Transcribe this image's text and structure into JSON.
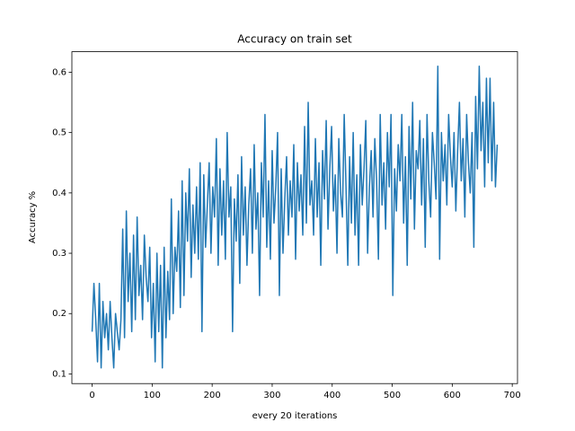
{
  "chart_data": {
    "type": "line",
    "title": "Accuracy on train set",
    "x_label": "every 20 iterations",
    "y_label": "Accuracy %",
    "color": "#1f77b4",
    "x": [
      0,
      3,
      6,
      9,
      12,
      15,
      18,
      21,
      24,
      27,
      30,
      33,
      36,
      39,
      42,
      45,
      48,
      51,
      54,
      57,
      60,
      63,
      66,
      69,
      72,
      75,
      78,
      81,
      84,
      87,
      90,
      93,
      96,
      99,
      102,
      105,
      108,
      111,
      114,
      117,
      120,
      123,
      126,
      129,
      132,
      135,
      138,
      141,
      144,
      147,
      150,
      153,
      156,
      159,
      162,
      165,
      168,
      171,
      174,
      177,
      180,
      183,
      186,
      189,
      192,
      195,
      198,
      201,
      204,
      207,
      210,
      213,
      216,
      219,
      222,
      225,
      228,
      231,
      234,
      237,
      240,
      243,
      246,
      249,
      252,
      255,
      258,
      261,
      264,
      267,
      270,
      273,
      276,
      279,
      282,
      285,
      288,
      291,
      294,
      297,
      300,
      303,
      306,
      309,
      312,
      315,
      318,
      321,
      324,
      327,
      330,
      333,
      336,
      339,
      342,
      345,
      348,
      351,
      354,
      357,
      360,
      363,
      366,
      369,
      372,
      375,
      378,
      381,
      384,
      387,
      390,
      393,
      396,
      399,
      402,
      405,
      408,
      411,
      414,
      417,
      420,
      423,
      426,
      429,
      432,
      435,
      438,
      441,
      444,
      447,
      450,
      453,
      456,
      459,
      462,
      465,
      468,
      471,
      474,
      477,
      480,
      483,
      486,
      489,
      492,
      495,
      498,
      501,
      504,
      507,
      510,
      513,
      516,
      519,
      522,
      525,
      528,
      531,
      534,
      537,
      540,
      543,
      546,
      549,
      552,
      555,
      558,
      561,
      564,
      567,
      570,
      573,
      576,
      579,
      582,
      585,
      588,
      591,
      594,
      597,
      600,
      603,
      606,
      609,
      612,
      615,
      618,
      621,
      624,
      627,
      630,
      633,
      636,
      639,
      642,
      645,
      648,
      651,
      654,
      657,
      660,
      663,
      666,
      669,
      672,
      675
    ],
    "values": [
      0.17,
      0.25,
      0.19,
      0.12,
      0.25,
      0.11,
      0.22,
      0.16,
      0.2,
      0.14,
      0.22,
      0.16,
      0.11,
      0.2,
      0.17,
      0.14,
      0.19,
      0.34,
      0.16,
      0.37,
      0.22,
      0.3,
      0.17,
      0.33,
      0.19,
      0.36,
      0.23,
      0.28,
      0.19,
      0.33,
      0.26,
      0.22,
      0.31,
      0.16,
      0.25,
      0.12,
      0.3,
      0.17,
      0.28,
      0.11,
      0.31,
      0.16,
      0.27,
      0.19,
      0.39,
      0.2,
      0.31,
      0.27,
      0.37,
      0.21,
      0.42,
      0.23,
      0.4,
      0.32,
      0.44,
      0.26,
      0.38,
      0.3,
      0.41,
      0.29,
      0.45,
      0.17,
      0.43,
      0.31,
      0.38,
      0.45,
      0.3,
      0.41,
      0.36,
      0.49,
      0.28,
      0.44,
      0.33,
      0.42,
      0.29,
      0.5,
      0.36,
      0.41,
      0.17,
      0.39,
      0.32,
      0.43,
      0.25,
      0.46,
      0.33,
      0.41,
      0.28,
      0.38,
      0.44,
      0.3,
      0.48,
      0.34,
      0.4,
      0.23,
      0.45,
      0.36,
      0.53,
      0.31,
      0.42,
      0.29,
      0.47,
      0.35,
      0.41,
      0.5,
      0.23,
      0.44,
      0.3,
      0.39,
      0.46,
      0.33,
      0.42,
      0.36,
      0.48,
      0.29,
      0.45,
      0.37,
      0.43,
      0.33,
      0.51,
      0.35,
      0.55,
      0.38,
      0.42,
      0.33,
      0.49,
      0.36,
      0.45,
      0.28,
      0.47,
      0.39,
      0.52,
      0.34,
      0.44,
      0.51,
      0.37,
      0.43,
      0.3,
      0.49,
      0.4,
      0.36,
      0.53,
      0.41,
      0.28,
      0.46,
      0.35,
      0.5,
      0.33,
      0.43,
      0.28,
      0.48,
      0.38,
      0.44,
      0.52,
      0.3,
      0.41,
      0.47,
      0.36,
      0.49,
      0.42,
      0.29,
      0.53,
      0.38,
      0.45,
      0.34,
      0.5,
      0.41,
      0.53,
      0.23,
      0.44,
      0.37,
      0.48,
      0.42,
      0.53,
      0.35,
      0.46,
      0.28,
      0.51,
      0.39,
      0.55,
      0.34,
      0.47,
      0.44,
      0.52,
      0.38,
      0.49,
      0.31,
      0.53,
      0.42,
      0.36,
      0.5,
      0.45,
      0.39,
      0.61,
      0.29,
      0.5,
      0.42,
      0.48,
      0.38,
      0.53,
      0.46,
      0.41,
      0.5,
      0.37,
      0.47,
      0.55,
      0.42,
      0.49,
      0.36,
      0.53,
      0.45,
      0.4,
      0.5,
      0.31,
      0.56,
      0.44,
      0.61,
      0.47,
      0.55,
      0.41,
      0.59,
      0.45,
      0.59,
      0.42,
      0.55,
      0.41,
      0.48
    ],
    "xlim": [
      -33.75,
      708.75
    ],
    "xticks": [
      0,
      100,
      200,
      300,
      400,
      500,
      600,
      700
    ],
    "ylim": [
      0.084,
      0.634
    ],
    "yticks": [
      0.1,
      0.2,
      0.3,
      0.4,
      0.5,
      0.6
    ]
  }
}
